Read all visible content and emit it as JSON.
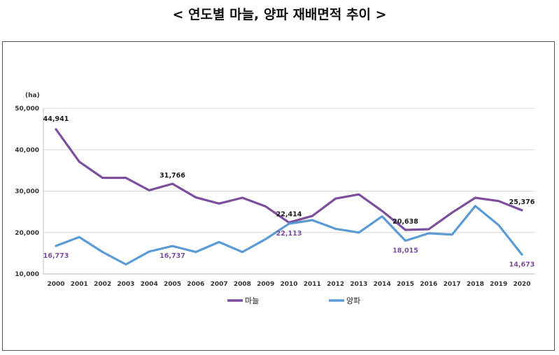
{
  "chart_data": {
    "type": "line",
    "title": "< 연도별 마늘, 양파 재배면적 추이 >",
    "ylabel": "(ha)",
    "ylim": [
      10000,
      50000
    ],
    "yticks": [
      "10,000",
      "20,000",
      "30,000",
      "40,000",
      "50,000"
    ],
    "categories": [
      "2000",
      "2001",
      "2002",
      "2003",
      "2004",
      "2005",
      "2006",
      "2007",
      "2008",
      "2009",
      "2010",
      "2011",
      "2012",
      "2013",
      "2014",
      "2015",
      "2016",
      "2017",
      "2018",
      "2019",
      "2020"
    ],
    "series": [
      {
        "name": "마늘",
        "color": "#7B4F9E",
        "values": [
          44941,
          37100,
          33200,
          33200,
          30200,
          31766,
          28500,
          27000,
          28400,
          26300,
          22414,
          24000,
          28200,
          29200,
          25200,
          20638,
          20800,
          24800,
          28400,
          27600,
          25376
        ],
        "labels": {
          "0": "44,941",
          "5": "31,766",
          "10": "22,414",
          "15": "20,638",
          "20": "25,376"
        }
      },
      {
        "name": "양파",
        "color": "#5B9BD5",
        "values": [
          16773,
          18900,
          15300,
          12300,
          15400,
          16737,
          15300,
          17700,
          15300,
          18400,
          22113,
          23000,
          20900,
          20000,
          23900,
          18015,
          19800,
          19500,
          26400,
          21800,
          14673
        ],
        "labels": {
          "0": "16,773",
          "5": "16,737",
          "10": "22,113",
          "15": "18,015",
          "20": "14,673"
        }
      }
    ],
    "legend_position": "bottom",
    "grid": true,
    "label_colors": {
      "마늘": "#1a1a1a",
      "양파": "#7B4F9E"
    }
  }
}
